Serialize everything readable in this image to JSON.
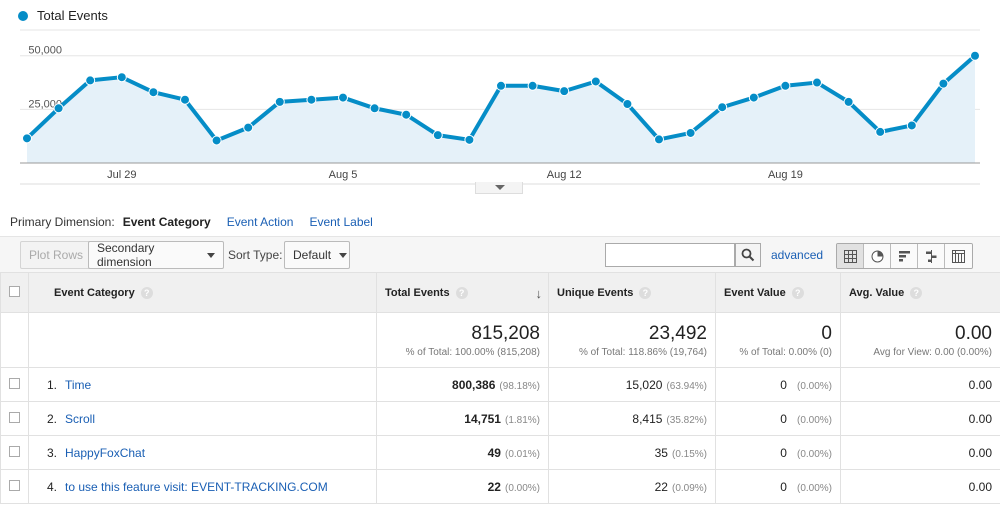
{
  "legend": {
    "label": "Total Events",
    "color": "#058dc7"
  },
  "chart_data": {
    "type": "area",
    "series": [
      {
        "name": "Total Events",
        "values": [
          11500,
          25500,
          38500,
          40000,
          33000,
          29500,
          10500,
          16500,
          28500,
          29500,
          30500,
          25500,
          22500,
          13000,
          10800,
          36000,
          36000,
          33500,
          38000,
          27500,
          11000,
          14000,
          26000,
          30500,
          36000,
          37500,
          28500,
          14500,
          17500,
          37000,
          50000
        ]
      }
    ],
    "x_tick_labels": [
      "Jul 29",
      "Aug 5",
      "Aug 12",
      "Aug 19"
    ],
    "x_tick_indices": [
      3,
      10,
      17,
      24
    ],
    "y_tick_labels": [
      "50,000",
      "25,000"
    ],
    "y_ticks": [
      50000,
      25000
    ],
    "ylim": [
      0,
      62000
    ],
    "grid": true,
    "color": "#058dc7",
    "fill": "#e5f1f9"
  },
  "dimensions": {
    "label": "Primary Dimension:",
    "active": "Event Category",
    "options": [
      "Event Action",
      "Event Label"
    ]
  },
  "toolbar": {
    "plot_rows": "Plot Rows",
    "secondary_dimension": "Secondary dimension",
    "sort_type_label": "Sort Type:",
    "sort_type_value": "Default",
    "advanced": "advanced",
    "search_value": ""
  },
  "table": {
    "headers": {
      "category": "Event Category",
      "total": "Total Events",
      "unique": "Unique Events",
      "value": "Event Value",
      "avg": "Avg. Value"
    },
    "help": "?",
    "sort_arrow": "↓",
    "totals": {
      "total": "815,208",
      "total_sub": "% of Total: 100.00% (815,208)",
      "unique": "23,492",
      "unique_sub": "% of Total: 118.86% (19,764)",
      "value": "0",
      "value_sub": "% of Total: 0.00% (0)",
      "avg": "0.00",
      "avg_sub": "Avg for View: 0.00 (0.00%)"
    },
    "rows": [
      {
        "rank": "1.",
        "category": "Time",
        "total": "800,386",
        "total_pct": "(98.18%)",
        "unique": "15,020",
        "unique_pct": "(63.94%)",
        "value": "0",
        "value_pct": "(0.00%)",
        "avg": "0.00"
      },
      {
        "rank": "2.",
        "category": "Scroll",
        "total": "14,751",
        "total_pct": "(1.81%)",
        "unique": "8,415",
        "unique_pct": "(35.82%)",
        "value": "0",
        "value_pct": "(0.00%)",
        "avg": "0.00"
      },
      {
        "rank": "3.",
        "category": "HappyFoxChat",
        "total": "49",
        "total_pct": "(0.01%)",
        "unique": "35",
        "unique_pct": "(0.15%)",
        "value": "0",
        "value_pct": "(0.00%)",
        "avg": "0.00"
      },
      {
        "rank": "4.",
        "category": "to use this feature visit: EVENT-TRACKING.COM",
        "total": "22",
        "total_pct": "(0.00%)",
        "unique": "22",
        "unique_pct": "(0.09%)",
        "value": "0",
        "value_pct": "(0.00%)",
        "avg": "0.00"
      }
    ]
  }
}
